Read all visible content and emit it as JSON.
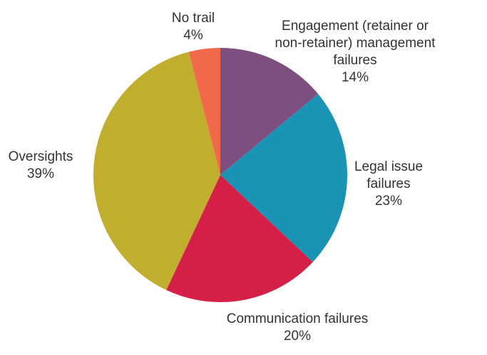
{
  "chart_data": {
    "type": "pie",
    "title": "",
    "start": "top",
    "direction": "clockwise",
    "slices": [
      {
        "label_lines": [
          "Engagement (retainer or",
          "non-retainer) management",
          "failures"
        ],
        "value": 14,
        "pct_label": "14%",
        "color": "#7e4f7e"
      },
      {
        "label_lines": [
          "Legal issue",
          "failures"
        ],
        "value": 23,
        "pct_label": "23%",
        "color": "#1a93b5"
      },
      {
        "label_lines": [
          "Communication failures"
        ],
        "value": 20,
        "pct_label": "20%",
        "color": "#d41f47"
      },
      {
        "label_lines": [
          "Oversights"
        ],
        "value": 39,
        "pct_label": "39%",
        "color": "#c2ae2e"
      },
      {
        "label_lines": [
          "No trail"
        ],
        "value": 4,
        "pct_label": "4%",
        "color": "#f2694a"
      }
    ]
  }
}
